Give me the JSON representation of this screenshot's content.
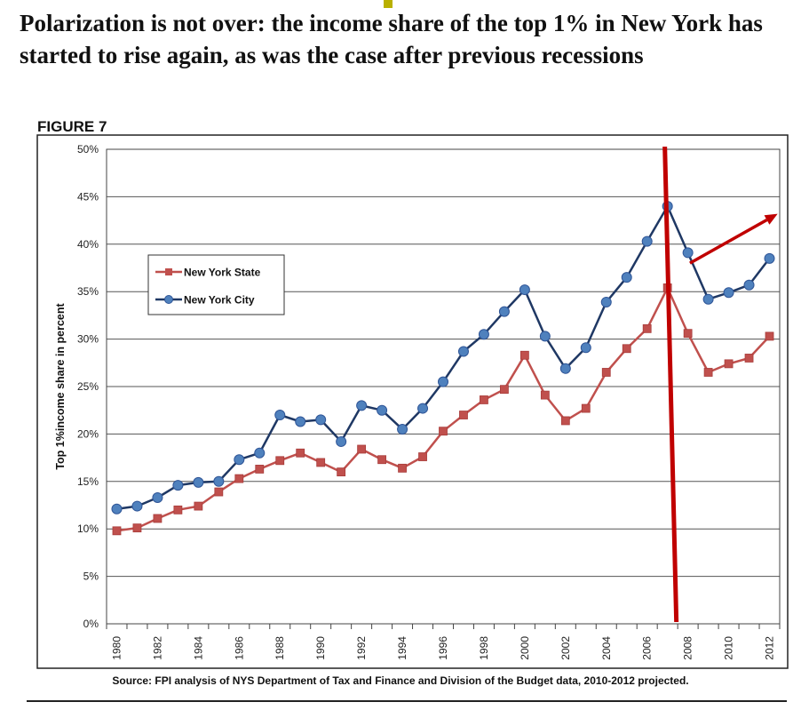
{
  "headline": "Polarization is not over: the income share of the top 1% in New York has started to rise again, as was the case after previous recessions",
  "figure_label": "FIGURE 7",
  "source_note": "Source: FPI analysis of NYS Department of Tax and Finance and Division of the Budget data, 2010-2012 projected.",
  "colors": {
    "nys": "#c0504d",
    "nyc": "#1f3864",
    "nyc_marker": "#4f81bd",
    "annotation": "#c00000"
  },
  "chart_data": {
    "type": "line",
    "ylabel": "Top 1%income share in percent",
    "xlabel": "",
    "ylim": [
      0,
      50
    ],
    "y_ticks": [
      "0%",
      "5%",
      "10%",
      "15%",
      "20%",
      "25%",
      "30%",
      "35%",
      "40%",
      "45%",
      "50%"
    ],
    "x_tick_labels": [
      "1980",
      "1982",
      "1984",
      "1986",
      "1988",
      "1990",
      "1992",
      "1994",
      "1996",
      "1998",
      "2000",
      "2002",
      "2004",
      "2006",
      "2008",
      "2010",
      "2012"
    ],
    "grid": true,
    "legend_position": "upper-left",
    "x": [
      1980,
      1981,
      1982,
      1983,
      1984,
      1985,
      1986,
      1987,
      1988,
      1989,
      1990,
      1991,
      1992,
      1993,
      1994,
      1995,
      1996,
      1997,
      1998,
      1999,
      2000,
      2001,
      2002,
      2003,
      2004,
      2005,
      2006,
      2007,
      2008,
      2009,
      2010,
      2011,
      2012
    ],
    "series": [
      {
        "name": "New York State",
        "marker": "square",
        "values": [
          9.8,
          10.1,
          11.1,
          12.0,
          12.4,
          13.9,
          15.3,
          16.3,
          17.2,
          18.0,
          17.0,
          16.0,
          18.4,
          17.3,
          16.4,
          17.6,
          20.3,
          22.0,
          23.6,
          24.7,
          28.3,
          24.1,
          21.4,
          22.7,
          26.5,
          29.0,
          31.1,
          35.4,
          30.6,
          26.5,
          27.4,
          28.0,
          30.3
        ]
      },
      {
        "name": "New York City",
        "marker": "circle",
        "values": [
          12.1,
          12.4,
          13.3,
          14.6,
          14.9,
          15.0,
          17.3,
          18.0,
          22.0,
          21.3,
          21.5,
          19.2,
          23.0,
          22.5,
          20.5,
          22.7,
          25.5,
          28.7,
          30.5,
          32.9,
          35.2,
          30.3,
          26.9,
          29.1,
          33.9,
          36.5,
          40.3,
          44.0,
          39.1,
          34.2,
          34.9,
          35.7,
          38.5
        ]
      }
    ],
    "annotations": [
      {
        "type": "vertical-line",
        "x": 2007
      },
      {
        "type": "arrow",
        "from": [
          2008.1,
          38.0
        ],
        "to": [
          2012.4,
          43.2
        ]
      }
    ]
  }
}
